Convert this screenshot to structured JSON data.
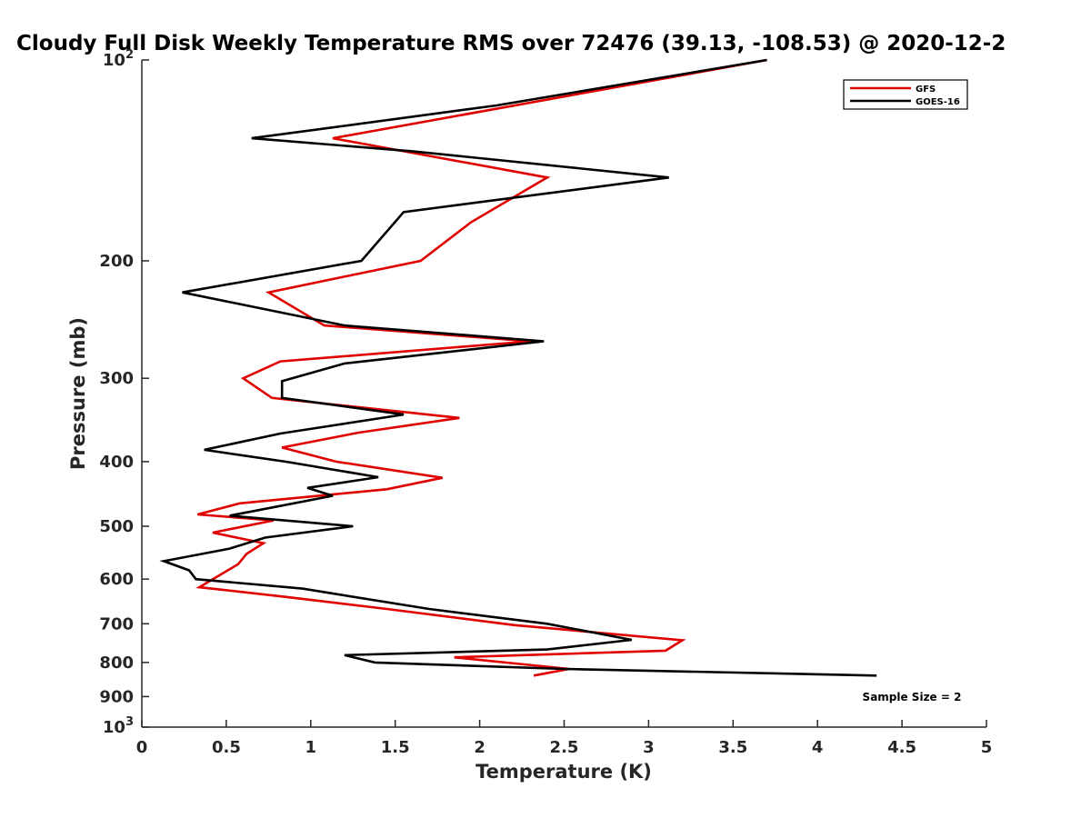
{
  "chart_data": {
    "type": "line",
    "title": "Cloudy Full Disk Weekly Temperature RMS over 72476 (39.13, -108.53) @ 2020-12-2",
    "xlabel": "Temperature (K)",
    "ylabel": "Pressure (mb)",
    "xlim": [
      0,
      5
    ],
    "ylim": [
      100,
      1000
    ],
    "y_scale": "log",
    "y_reversed": true,
    "grid": false,
    "legend_position": "top-right",
    "x_ticks": [
      "0",
      "0.5",
      "1",
      "1.5",
      "2",
      "2.5",
      "3",
      "3.5",
      "4",
      "4.5",
      "5"
    ],
    "y_ticks": [
      {
        "value": 100,
        "base": "10",
        "exp": "2"
      },
      {
        "value": 200,
        "label": "200"
      },
      {
        "value": 300,
        "label": "300"
      },
      {
        "value": 400,
        "label": "400"
      },
      {
        "value": 500,
        "label": "500"
      },
      {
        "value": 600,
        "label": "600"
      },
      {
        "value": 700,
        "label": "700"
      },
      {
        "value": 800,
        "label": "800"
      },
      {
        "value": 900,
        "label": "900"
      },
      {
        "value": 1000,
        "base": "10",
        "exp": "3"
      }
    ],
    "annotation": "Sample Size = 2",
    "series": [
      {
        "name": "GFS",
        "color": "#e00000",
        "points": [
          [
            3.7,
            100
          ],
          [
            1.13,
            131
          ],
          [
            2.4,
            150
          ],
          [
            1.95,
            175
          ],
          [
            1.65,
            200
          ],
          [
            0.75,
            223
          ],
          [
            1.08,
            250
          ],
          [
            2.3,
            264
          ],
          [
            0.82,
            283
          ],
          [
            0.6,
            300
          ],
          [
            0.77,
            321
          ],
          [
            1.88,
            344
          ],
          [
            1.28,
            362
          ],
          [
            0.83,
            381
          ],
          [
            1.15,
            400
          ],
          [
            1.78,
            423
          ],
          [
            1.45,
            440
          ],
          [
            0.58,
            462
          ],
          [
            0.33,
            480
          ],
          [
            0.78,
            490
          ],
          [
            0.42,
            511
          ],
          [
            0.72,
            530
          ],
          [
            0.62,
            550
          ],
          [
            0.57,
            570
          ],
          [
            0.34,
            617
          ],
          [
            0.85,
            638
          ],
          [
            1.45,
            665
          ],
          [
            2.2,
            703
          ],
          [
            3.2,
            741
          ],
          [
            3.1,
            768
          ],
          [
            1.85,
            786
          ],
          [
            2.53,
            818
          ],
          [
            2.32,
            837
          ]
        ]
      },
      {
        "name": "GOES-16",
        "color": "#000000",
        "points": [
          [
            3.7,
            100
          ],
          [
            2.1,
            117
          ],
          [
            0.65,
            131
          ],
          [
            1.6,
            137
          ],
          [
            3.12,
            150
          ],
          [
            1.55,
            169
          ],
          [
            1.3,
            200
          ],
          [
            0.24,
            223
          ],
          [
            1.2,
            250
          ],
          [
            2.38,
            264
          ],
          [
            1.2,
            285
          ],
          [
            0.83,
            303
          ],
          [
            0.83,
            321
          ],
          [
            1.55,
            340
          ],
          [
            1.1,
            354
          ],
          [
            0.82,
            363
          ],
          [
            0.37,
            384
          ],
          [
            0.85,
            400
          ],
          [
            1.4,
            422
          ],
          [
            0.98,
            438
          ],
          [
            1.13,
            450
          ],
          [
            0.52,
            482
          ],
          [
            1.25,
            500
          ],
          [
            0.73,
            520
          ],
          [
            0.52,
            540
          ],
          [
            0.13,
            564
          ],
          [
            0.28,
            582
          ],
          [
            0.32,
            600
          ],
          [
            0.95,
            620
          ],
          [
            1.7,
            665
          ],
          [
            2.4,
            700
          ],
          [
            2.9,
            740
          ],
          [
            2.4,
            765
          ],
          [
            1.2,
            780
          ],
          [
            1.38,
            800
          ],
          [
            2.5,
            818
          ],
          [
            4.35,
            837
          ]
        ]
      }
    ]
  }
}
